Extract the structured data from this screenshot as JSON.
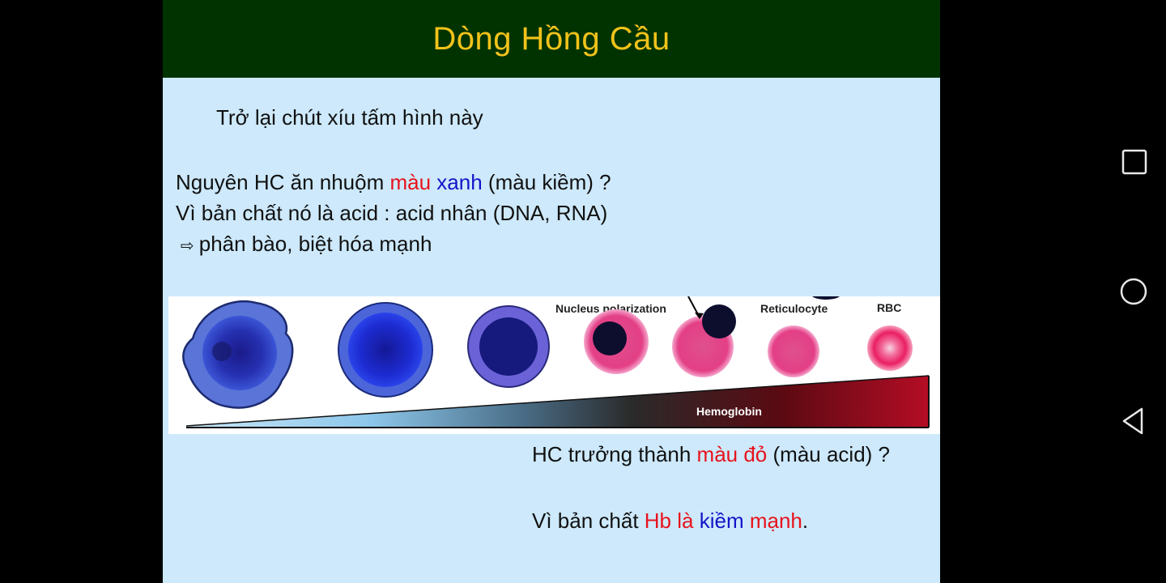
{
  "slide": {
    "title": "Dòng Hồng Cầu",
    "intro": "Trở lại chút xíu tấm hình này",
    "para1": {
      "t1": "Nguyên HC ăn nhuộm ",
      "red1": "màu",
      "sp": " ",
      "blue1": "xanh",
      "t2": " (màu kiềm) ? Vì bản chất nó là acid : acid nhân (DNA, RNA)",
      "arrow": "⇨",
      "t3": "phân bào, biệt hóa mạnh"
    },
    "para2": {
      "t1": "HC trưởng thành ",
      "red1": "màu đỏ",
      "t2": " (màu acid) ?"
    },
    "para3": {
      "t1": "Vì bản chất ",
      "red1": "Hb là",
      "sp": " ",
      "blue1": "kiềm",
      "sp2": " ",
      "red2": "mạnh",
      "t2": "."
    },
    "figure": {
      "label_nucleus": "Nucleus polarization",
      "label_reticulocyte": "Reticulocyte",
      "label_rbc": "RBC",
      "label_hemoglobin": "Hemoglobin"
    }
  },
  "colors": {
    "title_bar": "#003300",
    "title_text": "#f2c21a",
    "slide_bg": "#cde9fb",
    "red_text": "#e8121c",
    "blue_text": "#1414c8"
  },
  "nav": {
    "icons": [
      "recents-square-icon",
      "home-circle-icon",
      "back-triangle-icon"
    ]
  }
}
